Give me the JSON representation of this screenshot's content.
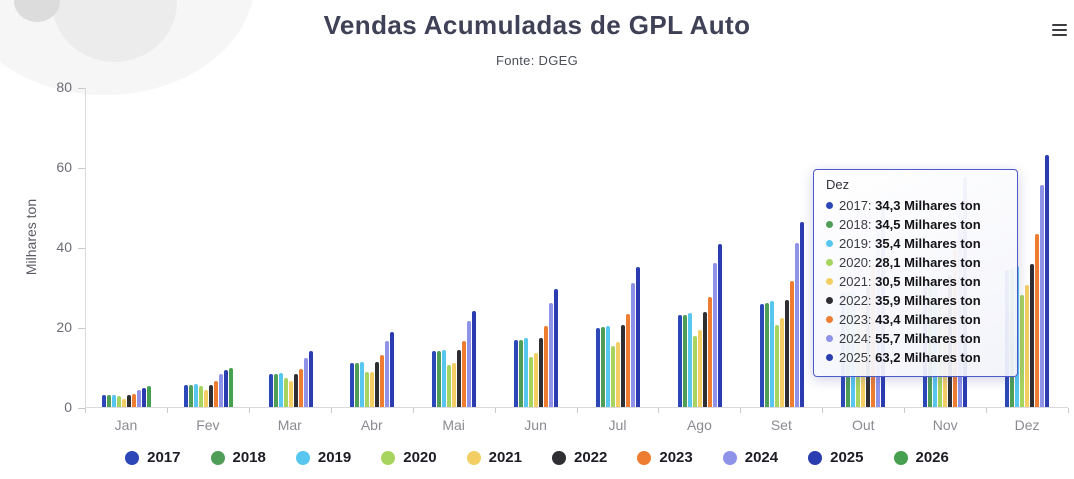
{
  "header": {
    "title": "Vendas Acumuladas de GPL Auto",
    "subtitle": "Fonte: DGEG"
  },
  "controls": {
    "menu_icon": "hamburger-menu-icon"
  },
  "y_axis": {
    "label": "Milhares ton",
    "ticks": [
      80,
      60,
      40,
      20,
      0
    ],
    "max": 80
  },
  "chart_data": {
    "type": "bar",
    "title": "Vendas Acumuladas de GPL Auto",
    "subtitle": "Fonte: DGEG",
    "xlabel": "",
    "ylabel": "Milhares ton",
    "ylim": [
      0,
      80
    ],
    "grid": false,
    "legend_position": "bottom",
    "categories": [
      "Jan",
      "Fev",
      "Mar",
      "Abr",
      "Mai",
      "Jun",
      "Jul",
      "Ago",
      "Set",
      "Out",
      "Nov",
      "Dez"
    ],
    "series": [
      {
        "name": "2017",
        "color": "#2c47b8",
        "values": [
          2.9,
          5.5,
          8.2,
          11.0,
          14.0,
          16.8,
          19.8,
          23.0,
          25.8,
          28.6,
          31.4,
          34.3
        ]
      },
      {
        "name": "2018",
        "color": "#4f9e58",
        "values": [
          2.9,
          5.6,
          8.3,
          11.1,
          14.1,
          16.9,
          20.0,
          23.2,
          26.0,
          28.8,
          31.6,
          34.5
        ]
      },
      {
        "name": "2019",
        "color": "#57c7ef",
        "values": [
          3.0,
          5.8,
          8.6,
          11.4,
          14.4,
          17.3,
          20.4,
          23.6,
          26.5,
          29.5,
          32.4,
          35.4
        ]
      },
      {
        "name": "2020",
        "color": "#a7d45e",
        "values": [
          2.7,
          5.3,
          7.4,
          8.7,
          10.5,
          12.6,
          15.2,
          17.9,
          20.6,
          23.2,
          25.7,
          28.1
        ]
      },
      {
        "name": "2021",
        "color": "#f3cf63",
        "values": [
          2.1,
          4.3,
          6.4,
          8.7,
          11.1,
          13.6,
          16.4,
          19.4,
          22.3,
          25.1,
          27.9,
          30.5
        ]
      },
      {
        "name": "2022",
        "color": "#2f2f33",
        "values": [
          2.9,
          5.6,
          8.3,
          11.2,
          14.3,
          17.3,
          20.6,
          23.8,
          26.9,
          30.0,
          33.0,
          35.9
        ]
      },
      {
        "name": "2023",
        "color": "#ee7d32",
        "values": [
          3.2,
          6.4,
          9.6,
          13.0,
          16.6,
          20.2,
          23.4,
          27.6,
          31.6,
          35.6,
          39.6,
          43.4
        ]
      },
      {
        "name": "2024",
        "color": "#8f92e9",
        "values": [
          4.2,
          8.2,
          12.2,
          16.6,
          21.6,
          26.2,
          31.2,
          36.2,
          41.2,
          46.3,
          51.0,
          55.7
        ]
      },
      {
        "name": "2025",
        "color": "#2a3cb0",
        "values": [
          4.8,
          9.3,
          14.0,
          18.8,
          24.1,
          29.5,
          35.0,
          40.8,
          46.4,
          52.0,
          57.6,
          63.2
        ]
      },
      {
        "name": "2026",
        "color": "#47a04f",
        "values": [
          5.2,
          9.8,
          null,
          null,
          null,
          null,
          null,
          null,
          null,
          null,
          null,
          null
        ]
      }
    ]
  },
  "tooltip": {
    "header": "Dez",
    "unit": "Milhares ton",
    "rows": [
      {
        "year": "2017",
        "value": "34,3"
      },
      {
        "year": "2018",
        "value": "34,5"
      },
      {
        "year": "2019",
        "value": "35,4"
      },
      {
        "year": "2020",
        "value": "28,1"
      },
      {
        "year": "2021",
        "value": "30,5"
      },
      {
        "year": "2022",
        "value": "35,9"
      },
      {
        "year": "2023",
        "value": "43,4"
      },
      {
        "year": "2024",
        "value": "55,7"
      },
      {
        "year": "2025",
        "value": "63,2"
      }
    ]
  }
}
